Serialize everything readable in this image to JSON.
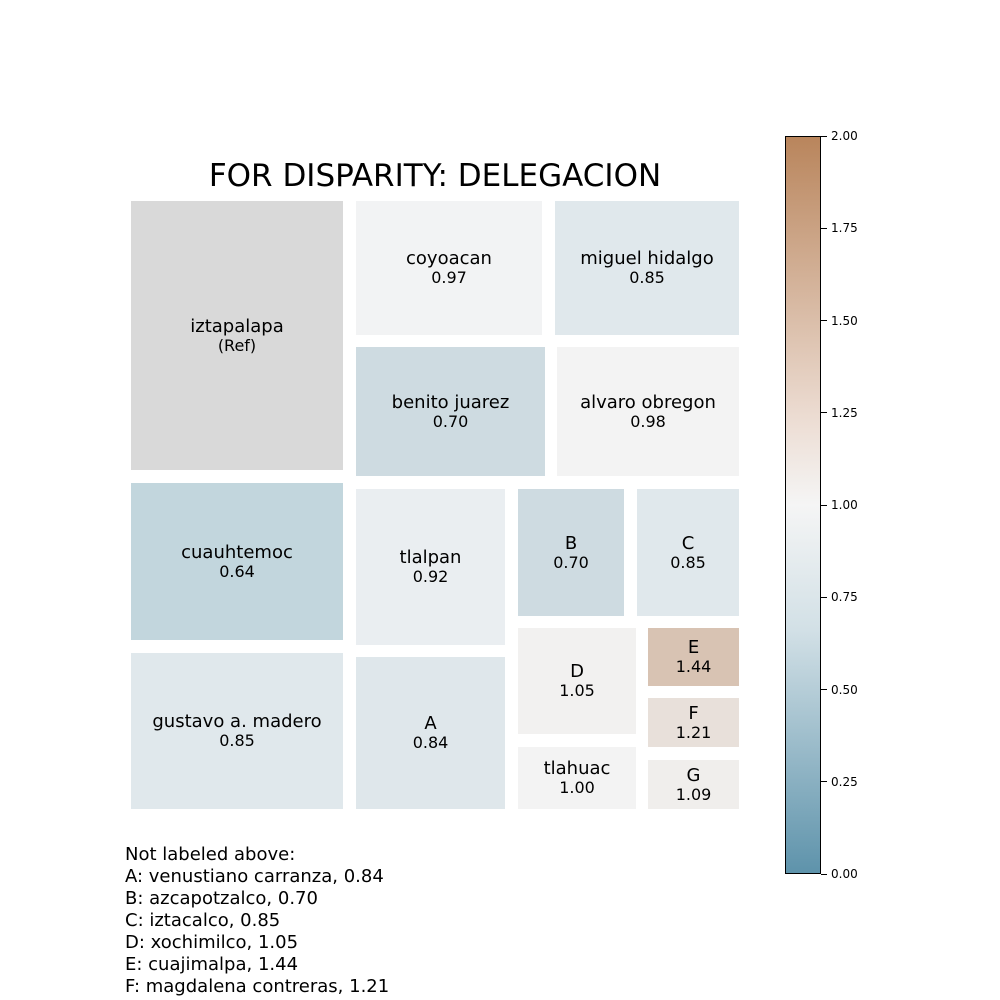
{
  "chart_data": {
    "type": "treemap",
    "title": "FOR DISPARITY: DELEGACION",
    "tiles": [
      {
        "id": "iztapalapa",
        "label": "iztapalapa",
        "value_text": "(Ref)",
        "value": null,
        "color": "#d9d9d9"
      },
      {
        "id": "coyoacan",
        "label": "coyoacan",
        "value_text": "0.97",
        "value": 0.97,
        "color": "#f2f3f4"
      },
      {
        "id": "miguel-hidalgo",
        "label": "miguel hidalgo",
        "value_text": "0.85",
        "value": 0.85,
        "color": "#e0e8ec"
      },
      {
        "id": "benito-juarez",
        "label": "benito juarez",
        "value_text": "0.70",
        "value": 0.7,
        "color": "#cedbe1"
      },
      {
        "id": "alvaro-obregon",
        "label": "alvaro obregon",
        "value_text": "0.98",
        "value": 0.98,
        "color": "#f3f3f3"
      },
      {
        "id": "cuauhtemoc",
        "label": "cuauhtemoc",
        "value_text": "0.64",
        "value": 0.64,
        "color": "#c2d6dd"
      },
      {
        "id": "tlalpan",
        "label": "tlalpan",
        "value_text": "0.92",
        "value": 0.92,
        "color": "#eaeef1"
      },
      {
        "id": "b",
        "label": "B",
        "value_text": "0.70",
        "value": 0.7,
        "color": "#cedbe1"
      },
      {
        "id": "c",
        "label": "C",
        "value_text": "0.85",
        "value": 0.85,
        "color": "#e0e8ec"
      },
      {
        "id": "gustavo-a-madero",
        "label": "gustavo a. madero",
        "value_text": "0.85",
        "value": 0.85,
        "color": "#e0e8ec"
      },
      {
        "id": "a",
        "label": "A",
        "value_text": "0.84",
        "value": 0.84,
        "color": "#dfe7eb"
      },
      {
        "id": "d",
        "label": "D",
        "value_text": "1.05",
        "value": 1.05,
        "color": "#f2f1f0"
      },
      {
        "id": "e",
        "label": "E",
        "value_text": "1.44",
        "value": 1.44,
        "color": "#d8c3b3"
      },
      {
        "id": "f",
        "label": "F",
        "value_text": "1.21",
        "value": 1.21,
        "color": "#e8e0da"
      },
      {
        "id": "g",
        "label": "G",
        "value_text": "1.09",
        "value": 1.09,
        "color": "#f0eeec"
      },
      {
        "id": "tlahuac",
        "label": "tlahuac",
        "value_text": "1.00",
        "value": 1.0,
        "color": "#f3f3f3"
      }
    ],
    "colorbar": {
      "range": [
        0,
        2
      ],
      "ticks": [
        "0.00",
        "0.25",
        "0.50",
        "0.75",
        "1.00",
        "1.25",
        "1.50",
        "1.75",
        "2.00"
      ],
      "colors": {
        "low": "#5e93ab",
        "mid": "#f5f5f5",
        "high": "#b9855c"
      }
    },
    "footnote": {
      "heading": "Not labeled above:",
      "lines": [
        "A: venustiano carranza, 0.84",
        "B: azcapotzalco, 0.70",
        "C: iztacalco, 0.85",
        "D: xochimilco, 1.05",
        "E: cuajimalpa, 1.44",
        "F: magdalena contreras, 1.21"
      ]
    }
  }
}
